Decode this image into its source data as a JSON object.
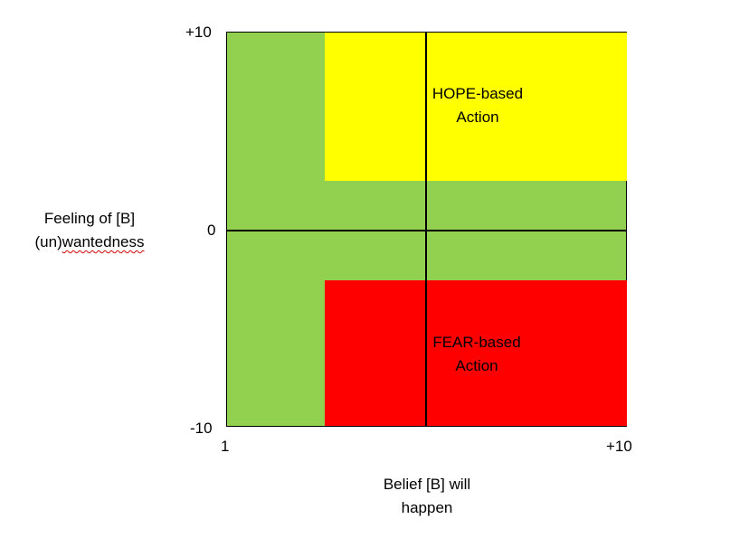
{
  "axes": {
    "y_top": "+10",
    "y_mid": "0",
    "y_bottom": "-10",
    "x_left": "1",
    "x_right": "+10"
  },
  "y_label": {
    "line1": "Feeling of [B]",
    "line2_prefix": "(un)",
    "line2_rest": "wantedness"
  },
  "x_label": {
    "line1": "Belief [B] will",
    "line2": "happen"
  },
  "regions": {
    "hope": {
      "line1": "HOPE-based",
      "line2": "Action"
    },
    "fear": {
      "line1": "FEAR-based",
      "line2": "Action"
    }
  },
  "colors": {
    "neutral": "#92d050",
    "hope": "#ffff00",
    "fear": "#ff0000"
  }
}
